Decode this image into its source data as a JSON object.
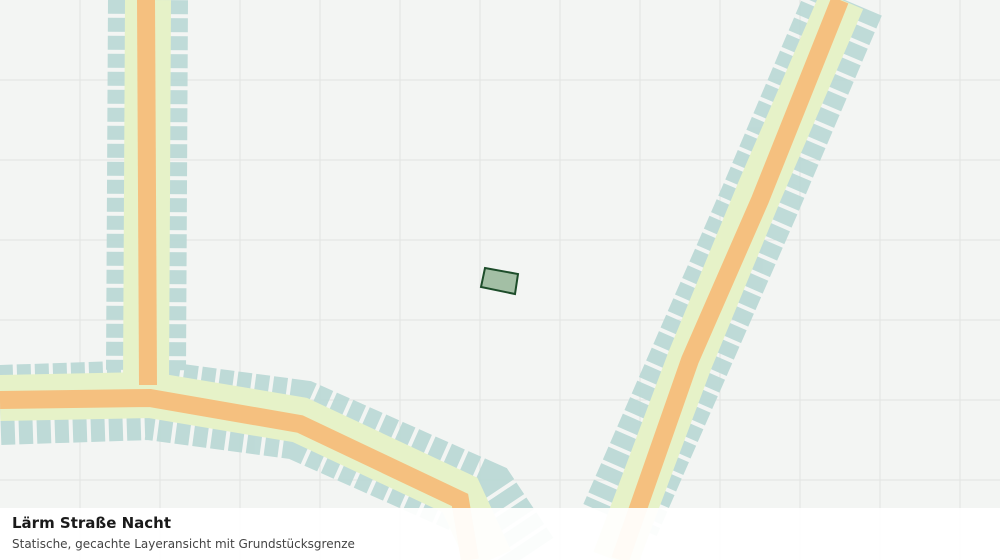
{
  "caption": {
    "title": "Lärm Straße Nacht",
    "subtitle": "Statische, gecachte Layeransicht mit Grundstücksgrenze"
  }
}
